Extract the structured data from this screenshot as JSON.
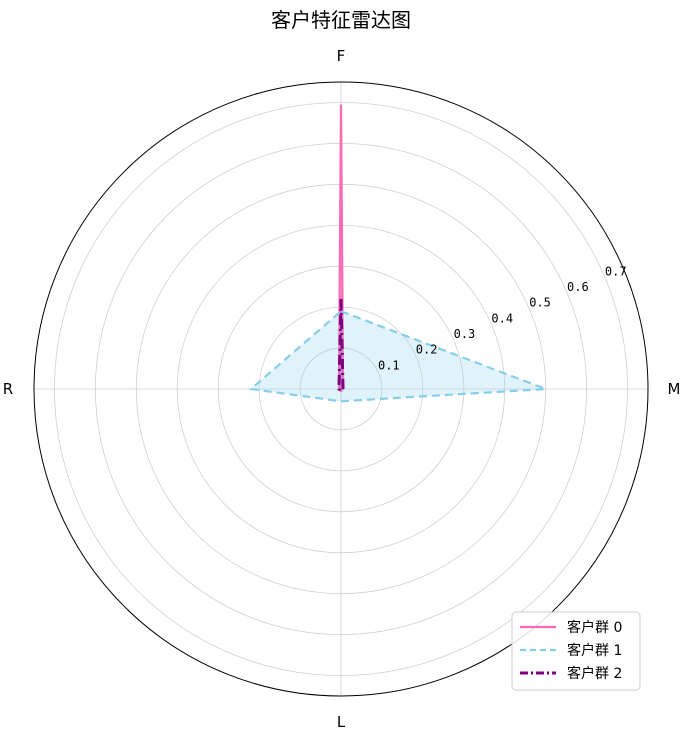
{
  "chart_data": {
    "type": "radar",
    "title": "客户特征雷达图",
    "axes": [
      "F",
      "M",
      "L",
      "R"
    ],
    "rlim": [
      0,
      0.75
    ],
    "rticks": [
      0.1,
      0.2,
      0.3,
      0.4,
      0.5,
      0.6,
      0.7
    ],
    "rtick_labels": [
      "0.1",
      "0.2",
      "0.3",
      "0.4",
      "0.5",
      "0.6",
      "0.7"
    ],
    "grid": true,
    "legend_position": "bottom-right",
    "series": [
      {
        "name": "客户群 0",
        "values": [
          0.695,
          0.005,
          0.005,
          0.005
        ],
        "color": "#ff69b4",
        "line_style": "solid",
        "fill": true
      },
      {
        "name": "客户群 1",
        "values": [
          0.19,
          0.5,
          0.03,
          0.22
        ],
        "color": "#87ceeb",
        "line_style": "dashed",
        "fill": true
      },
      {
        "name": "客户群 2",
        "values": [
          0.22,
          0.005,
          0.005,
          0.005
        ],
        "color": "#800080",
        "line_style": "dashdot",
        "fill": true
      }
    ]
  }
}
